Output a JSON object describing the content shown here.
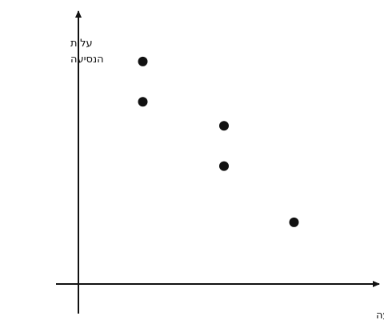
{
  "chart_data": {
    "type": "scatter",
    "xlabel": "זמן הנסיעה",
    "ylabel_lines": [
      "עלות",
      "הנסיעה"
    ],
    "ticks": false,
    "grid": false,
    "legend": "none",
    "x_range": [
      0,
      10
    ],
    "y_range": [
      0,
      10
    ],
    "points": [
      {
        "x": 2.3,
        "y": 8.3
      },
      {
        "x": 2.3,
        "y": 6.8
      },
      {
        "x": 5.2,
        "y": 5.9
      },
      {
        "x": 5.2,
        "y": 4.4
      },
      {
        "x": 7.7,
        "y": 2.3
      }
    ],
    "colors": {
      "axis": "#111111",
      "point": "#111111"
    }
  }
}
